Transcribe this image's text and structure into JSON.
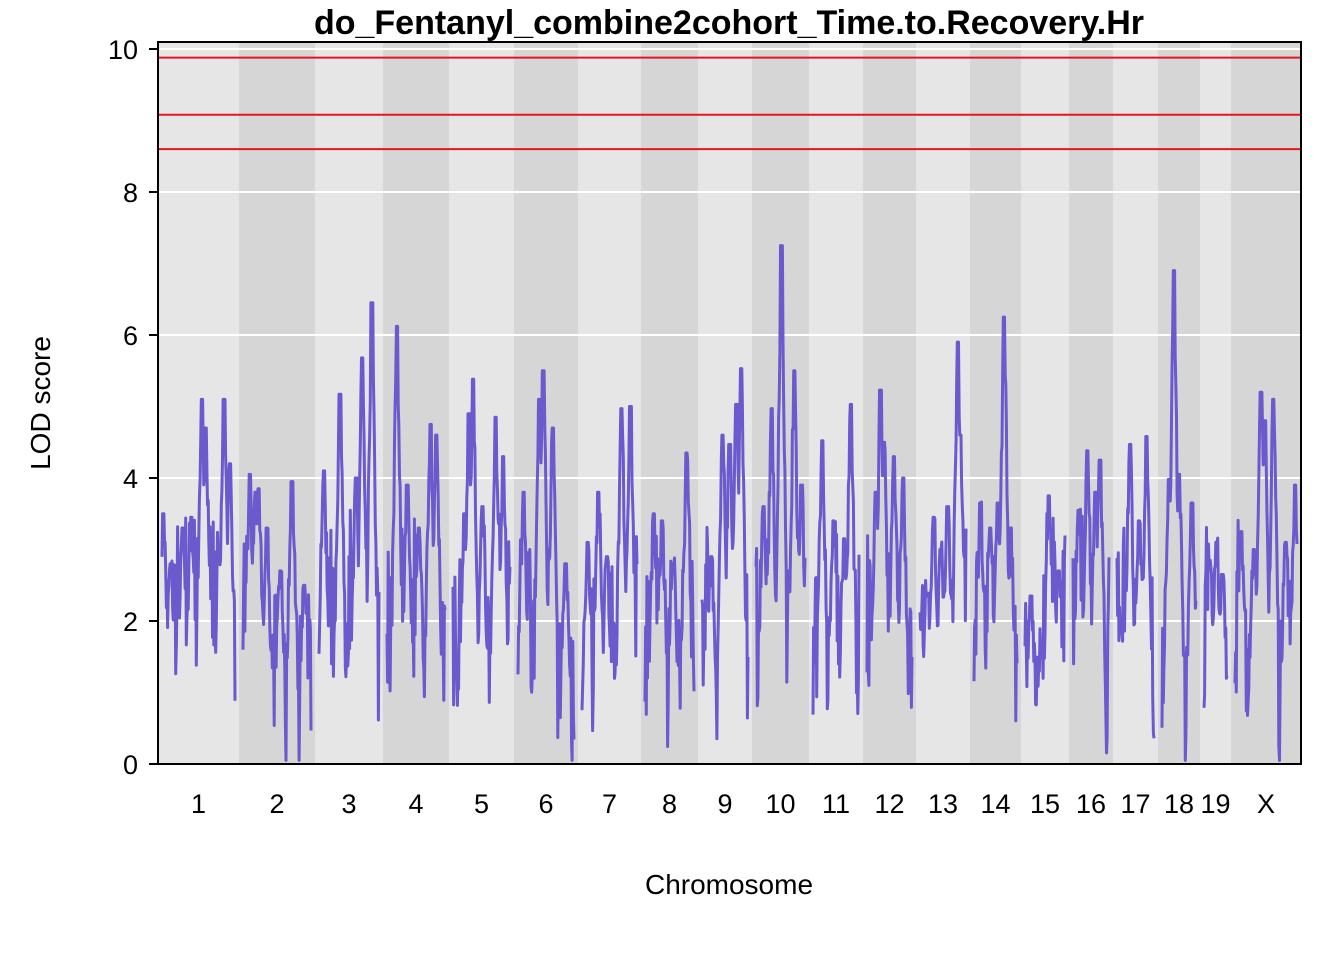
{
  "chart_data": {
    "type": "line",
    "title": "do_Fentanyl_combine2cohort_Time.to.Recovery.Hr",
    "xlabel": "Chromosome",
    "ylabel": "LOD score",
    "ylim": [
      0,
      10
    ],
    "y_ticks": [
      0,
      2,
      4,
      6,
      8,
      10
    ],
    "grid": true,
    "chromosomes": [
      "1",
      "2",
      "3",
      "4",
      "5",
      "6",
      "7",
      "8",
      "9",
      "10",
      "11",
      "12",
      "13",
      "14",
      "15",
      "16",
      "17",
      "18",
      "19",
      "X"
    ],
    "thresholds": [
      9.88,
      9.08,
      8.6
    ],
    "colors": {
      "series": "#6a5acd",
      "threshold": "#e8141e",
      "band_light": "#e6e6e6",
      "band_dark": "#d6d6d6",
      "grid": "#ffffff"
    },
    "peaks": [
      {
        "chr": "1",
        "pos": 0.02,
        "lod": 3.5
      },
      {
        "chr": "1",
        "pos": 0.12,
        "lod": 2.8
      },
      {
        "chr": "1",
        "pos": 0.28,
        "lod": 3.3
      },
      {
        "chr": "1",
        "pos": 0.4,
        "lod": 3.45
      },
      {
        "chr": "1",
        "pos": 0.55,
        "lod": 5.1
      },
      {
        "chr": "1",
        "pos": 0.6,
        "lod": 4.7
      },
      {
        "chr": "1",
        "pos": 0.78,
        "lod": 2.9
      },
      {
        "chr": "1",
        "pos": 0.85,
        "lod": 5.1
      },
      {
        "chr": "1",
        "pos": 0.93,
        "lod": 4.2
      },
      {
        "chr": "2",
        "pos": 0.1,
        "lod": 4.05
      },
      {
        "chr": "2",
        "pos": 0.18,
        "lod": 3.8
      },
      {
        "chr": "2",
        "pos": 0.23,
        "lod": 3.85
      },
      {
        "chr": "2",
        "pos": 0.35,
        "lod": 3.3
      },
      {
        "chr": "2",
        "pos": 0.55,
        "lod": 2.7
      },
      {
        "chr": "2",
        "pos": 0.72,
        "lod": 3.95
      },
      {
        "chr": "2",
        "pos": 0.9,
        "lod": 2.5
      },
      {
        "chr": "3",
        "pos": 0.08,
        "lod": 4.1
      },
      {
        "chr": "3",
        "pos": 0.35,
        "lod": 5.17
      },
      {
        "chr": "3",
        "pos": 0.62,
        "lod": 4.0
      },
      {
        "chr": "3",
        "pos": 0.72,
        "lod": 5.68
      },
      {
        "chr": "3",
        "pos": 0.88,
        "lod": 6.45
      },
      {
        "chr": "4",
        "pos": 0.17,
        "lod": 6.12
      },
      {
        "chr": "4",
        "pos": 0.35,
        "lod": 3.9
      },
      {
        "chr": "4",
        "pos": 0.55,
        "lod": 3.3
      },
      {
        "chr": "4",
        "pos": 0.75,
        "lod": 4.75
      },
      {
        "chr": "4",
        "pos": 0.85,
        "lod": 4.6
      },
      {
        "chr": "5",
        "pos": 0.2,
        "lod": 3.5
      },
      {
        "chr": "5",
        "pos": 0.28,
        "lod": 4.9
      },
      {
        "chr": "5",
        "pos": 0.35,
        "lod": 5.38
      },
      {
        "chr": "5",
        "pos": 0.52,
        "lod": 3.6
      },
      {
        "chr": "5",
        "pos": 0.75,
        "lod": 4.85
      },
      {
        "chr": "5",
        "pos": 0.88,
        "lod": 4.3
      },
      {
        "chr": "6",
        "pos": 0.1,
        "lod": 3.8
      },
      {
        "chr": "6",
        "pos": 0.38,
        "lod": 5.1
      },
      {
        "chr": "6",
        "pos": 0.45,
        "lod": 5.5
      },
      {
        "chr": "6",
        "pos": 0.62,
        "lod": 4.7
      },
      {
        "chr": "6",
        "pos": 0.85,
        "lod": 2.8
      },
      {
        "chr": "7",
        "pos": 0.1,
        "lod": 3.1
      },
      {
        "chr": "7",
        "pos": 0.3,
        "lod": 3.8
      },
      {
        "chr": "7",
        "pos": 0.45,
        "lod": 2.9
      },
      {
        "chr": "7",
        "pos": 0.72,
        "lod": 4.97
      },
      {
        "chr": "7",
        "pos": 0.88,
        "lod": 5.0
      },
      {
        "chr": "8",
        "pos": 0.18,
        "lod": 3.5
      },
      {
        "chr": "8",
        "pos": 0.35,
        "lod": 3.4
      },
      {
        "chr": "8",
        "pos": 0.58,
        "lod": 2.8
      },
      {
        "chr": "8",
        "pos": 0.85,
        "lod": 4.35
      },
      {
        "chr": "9",
        "pos": 0.2,
        "lod": 2.9
      },
      {
        "chr": "9",
        "pos": 0.45,
        "lod": 4.6
      },
      {
        "chr": "9",
        "pos": 0.6,
        "lod": 4.47
      },
      {
        "chr": "9",
        "pos": 0.75,
        "lod": 5.03
      },
      {
        "chr": "9",
        "pos": 0.85,
        "lod": 5.53
      },
      {
        "chr": "10",
        "pos": 0.15,
        "lod": 3.6
      },
      {
        "chr": "10",
        "pos": 0.32,
        "lod": 4.97
      },
      {
        "chr": "10",
        "pos": 0.52,
        "lod": 7.25
      },
      {
        "chr": "10",
        "pos": 0.78,
        "lod": 5.5
      },
      {
        "chr": "10",
        "pos": 0.93,
        "lod": 3.9
      },
      {
        "chr": "11",
        "pos": 0.2,
        "lod": 4.52
      },
      {
        "chr": "11",
        "pos": 0.45,
        "lod": 3.4
      },
      {
        "chr": "11",
        "pos": 0.68,
        "lod": 3.15
      },
      {
        "chr": "11",
        "pos": 0.82,
        "lod": 5.03
      },
      {
        "chr": "12",
        "pos": 0.2,
        "lod": 3.8
      },
      {
        "chr": "12",
        "pos": 0.3,
        "lod": 5.23
      },
      {
        "chr": "12",
        "pos": 0.38,
        "lod": 4.5
      },
      {
        "chr": "12",
        "pos": 0.6,
        "lod": 4.3
      },
      {
        "chr": "12",
        "pos": 0.8,
        "lod": 4.0
      },
      {
        "chr": "13",
        "pos": 0.15,
        "lod": 2.35
      },
      {
        "chr": "13",
        "pos": 0.3,
        "lod": 3.45
      },
      {
        "chr": "13",
        "pos": 0.45,
        "lod": 3.0
      },
      {
        "chr": "13",
        "pos": 0.6,
        "lod": 3.6
      },
      {
        "chr": "13",
        "pos": 0.82,
        "lod": 5.9
      },
      {
        "chr": "13",
        "pos": 0.88,
        "lod": 4.6
      },
      {
        "chr": "14",
        "pos": 0.15,
        "lod": 3.65
      },
      {
        "chr": "14",
        "pos": 0.38,
        "lod": 3.3
      },
      {
        "chr": "14",
        "pos": 0.55,
        "lod": 3.65
      },
      {
        "chr": "14",
        "pos": 0.7,
        "lod": 6.25
      },
      {
        "chr": "14",
        "pos": 0.85,
        "lod": 3.3
      },
      {
        "chr": "15",
        "pos": 0.15,
        "lod": 2.35
      },
      {
        "chr": "15",
        "pos": 0.4,
        "lod": 1.6
      },
      {
        "chr": "15",
        "pos": 0.6,
        "lod": 3.75
      },
      {
        "chr": "15",
        "pos": 0.85,
        "lod": 2.7
      },
      {
        "chr": "16",
        "pos": 0.15,
        "lod": 3.55
      },
      {
        "chr": "16",
        "pos": 0.4,
        "lod": 4.38
      },
      {
        "chr": "16",
        "pos": 0.62,
        "lod": 3.8
      },
      {
        "chr": "16",
        "pos": 0.75,
        "lod": 4.25
      },
      {
        "chr": "17",
        "pos": 0.1,
        "lod": 1.9
      },
      {
        "chr": "17",
        "pos": 0.35,
        "lod": 4.47
      },
      {
        "chr": "17",
        "pos": 0.6,
        "lod": 3.4
      },
      {
        "chr": "17",
        "pos": 0.8,
        "lod": 4.58
      },
      {
        "chr": "18",
        "pos": 0.2,
        "lod": 3.98
      },
      {
        "chr": "18",
        "pos": 0.35,
        "lod": 6.9
      },
      {
        "chr": "18",
        "pos": 0.5,
        "lod": 4.05
      },
      {
        "chr": "18",
        "pos": 0.88,
        "lod": 3.65
      },
      {
        "chr": "19",
        "pos": 0.25,
        "lod": 2.85
      },
      {
        "chr": "19",
        "pos": 0.55,
        "lod": 3.1
      },
      {
        "chr": "19",
        "pos": 0.8,
        "lod": 2.65
      },
      {
        "chr": "X",
        "pos": 0.1,
        "lod": 3.25
      },
      {
        "chr": "X",
        "pos": 0.3,
        "lod": 3.0
      },
      {
        "chr": "X",
        "pos": 0.42,
        "lod": 5.2
      },
      {
        "chr": "X",
        "pos": 0.48,
        "lod": 4.8
      },
      {
        "chr": "X",
        "pos": 0.62,
        "lod": 5.1
      },
      {
        "chr": "X",
        "pos": 0.82,
        "lod": 3.1
      },
      {
        "chr": "X",
        "pos": 0.97,
        "lod": 3.9
      }
    ]
  }
}
